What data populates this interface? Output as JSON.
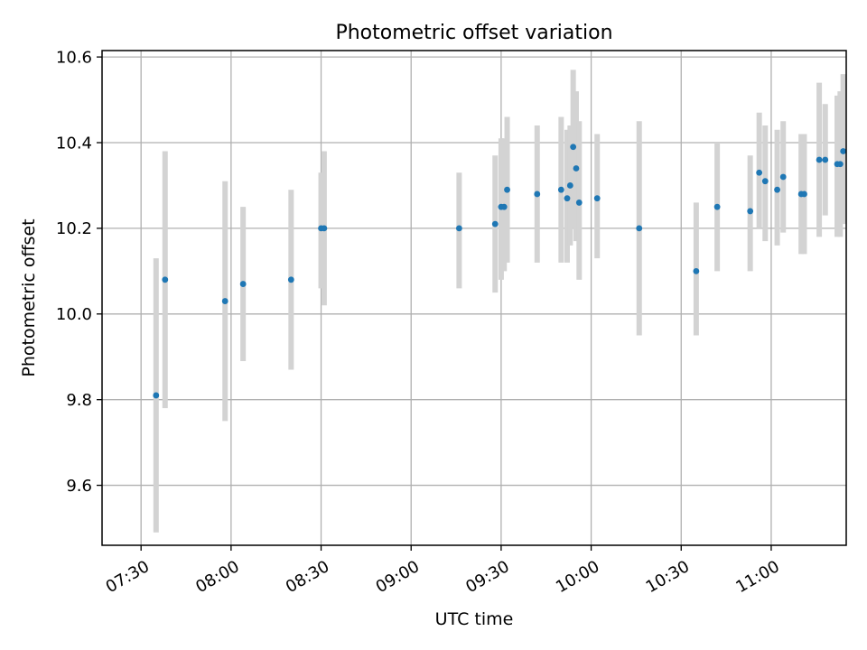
{
  "chart_data": {
    "type": "scatter",
    "title": "Photometric offset variation",
    "xlabel": "UTC time",
    "ylabel": "Photometric offset",
    "xlim": [
      "07:17",
      "11:25"
    ],
    "ylim": [
      9.46,
      10.615
    ],
    "grid": true,
    "x_ticks": [
      "07:30",
      "08:00",
      "08:30",
      "09:00",
      "09:30",
      "10:00",
      "10:30",
      "11:00"
    ],
    "y_ticks": [
      "9.6",
      "9.8",
      "10.0",
      "10.2",
      "10.4",
      "10.6"
    ],
    "colors": {
      "marker": "#1f77b4",
      "errorbar": "#d3d3d3"
    },
    "points": [
      {
        "x": "07:35",
        "y": 9.81,
        "ylo": 9.49,
        "yhi": 10.13
      },
      {
        "x": "07:38",
        "y": 10.08,
        "ylo": 9.78,
        "yhi": 10.38
      },
      {
        "x": "07:58",
        "y": 10.03,
        "ylo": 9.75,
        "yhi": 10.31
      },
      {
        "x": "08:04",
        "y": 10.07,
        "ylo": 9.89,
        "yhi": 10.25
      },
      {
        "x": "08:20",
        "y": 10.08,
        "ylo": 9.87,
        "yhi": 10.29
      },
      {
        "x": "08:30",
        "y": 10.2,
        "ylo": 10.06,
        "yhi": 10.33
      },
      {
        "x": "08:31",
        "y": 10.2,
        "ylo": 10.02,
        "yhi": 10.38
      },
      {
        "x": "09:16",
        "y": 10.2,
        "ylo": 10.06,
        "yhi": 10.33
      },
      {
        "x": "09:28",
        "y": 10.21,
        "ylo": 10.05,
        "yhi": 10.37
      },
      {
        "x": "09:30",
        "y": 10.25,
        "ylo": 10.08,
        "yhi": 10.41
      },
      {
        "x": "09:31",
        "y": 10.25,
        "ylo": 10.1,
        "yhi": 10.41
      },
      {
        "x": "09:32",
        "y": 10.29,
        "ylo": 10.12,
        "yhi": 10.46
      },
      {
        "x": "09:42",
        "y": 10.28,
        "ylo": 10.12,
        "yhi": 10.44
      },
      {
        "x": "09:50",
        "y": 10.29,
        "ylo": 10.12,
        "yhi": 10.46
      },
      {
        "x": "09:52",
        "y": 10.27,
        "ylo": 10.12,
        "yhi": 10.43
      },
      {
        "x": "09:53",
        "y": 10.3,
        "ylo": 10.16,
        "yhi": 10.44
      },
      {
        "x": "09:54",
        "y": 10.39,
        "ylo": 10.2,
        "yhi": 10.57
      },
      {
        "x": "09:55",
        "y": 10.34,
        "ylo": 10.17,
        "yhi": 10.52
      },
      {
        "x": "09:56",
        "y": 10.26,
        "ylo": 10.08,
        "yhi": 10.45
      },
      {
        "x": "10:02",
        "y": 10.27,
        "ylo": 10.13,
        "yhi": 10.42
      },
      {
        "x": "10:16",
        "y": 10.2,
        "ylo": 9.95,
        "yhi": 10.45
      },
      {
        "x": "10:35",
        "y": 10.1,
        "ylo": 9.95,
        "yhi": 10.26
      },
      {
        "x": "10:42",
        "y": 10.25,
        "ylo": 10.1,
        "yhi": 10.4
      },
      {
        "x": "10:53",
        "y": 10.24,
        "ylo": 10.1,
        "yhi": 10.37
      },
      {
        "x": "10:56",
        "y": 10.33,
        "ylo": 10.2,
        "yhi": 10.47
      },
      {
        "x": "10:58",
        "y": 10.31,
        "ylo": 10.17,
        "yhi": 10.44
      },
      {
        "x": "11:02",
        "y": 10.29,
        "ylo": 10.16,
        "yhi": 10.43
      },
      {
        "x": "11:04",
        "y": 10.32,
        "ylo": 10.19,
        "yhi": 10.45
      },
      {
        "x": "11:10",
        "y": 10.28,
        "ylo": 10.14,
        "yhi": 10.42
      },
      {
        "x": "11:11",
        "y": 10.28,
        "ylo": 10.14,
        "yhi": 10.42
      },
      {
        "x": "11:16",
        "y": 10.36,
        "ylo": 10.18,
        "yhi": 10.54
      },
      {
        "x": "11:18",
        "y": 10.36,
        "ylo": 10.23,
        "yhi": 10.49
      },
      {
        "x": "11:22",
        "y": 10.35,
        "ylo": 10.18,
        "yhi": 10.51
      },
      {
        "x": "11:23",
        "y": 10.35,
        "ylo": 10.18,
        "yhi": 10.52
      },
      {
        "x": "11:24",
        "y": 10.38,
        "ylo": 10.21,
        "yhi": 10.56
      }
    ]
  }
}
